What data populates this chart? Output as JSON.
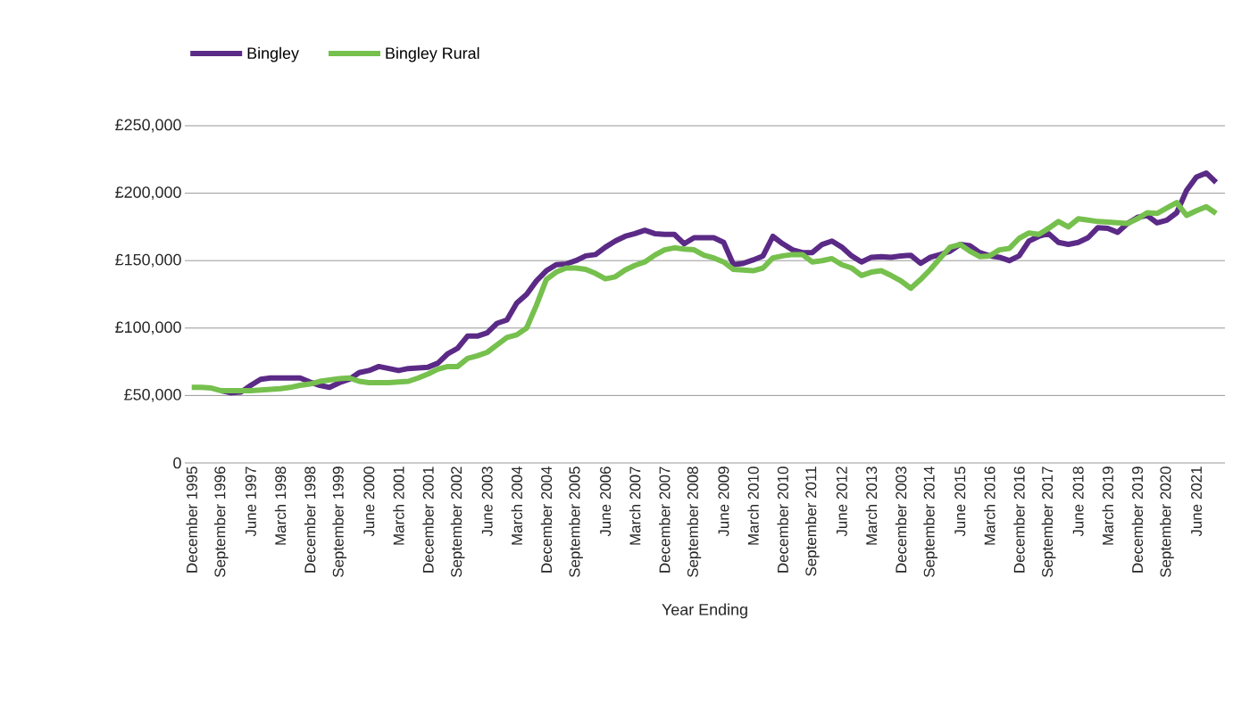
{
  "chart_data": {
    "type": "line",
    "xlabel": "Year Ending",
    "categories": [
      "December 1995",
      null,
      null,
      "September 1996",
      null,
      null,
      "June 1997",
      null,
      null,
      "March 1998",
      null,
      null,
      "December 1998",
      null,
      null,
      "September 1999",
      null,
      null,
      "June 2000",
      null,
      null,
      "March 2001",
      null,
      null,
      "December 2001",
      null,
      null,
      "September 2002",
      null,
      null,
      "June 2003",
      null,
      null,
      "March 2004",
      null,
      null,
      "December 2004",
      null,
      null,
      "September 2005",
      null,
      null,
      "June 2006",
      null,
      null,
      "March 2007",
      null,
      null,
      "December 2007",
      null,
      null,
      "September 2008",
      null,
      null,
      "June 2009",
      null,
      null,
      "March 2010",
      null,
      null,
      "December 2010",
      null,
      null,
      "September 2011",
      null,
      null,
      "June 2012",
      null,
      null,
      "March 2013",
      null,
      null,
      "December 2003",
      null,
      null,
      "September 2014",
      null,
      null,
      "June 2015",
      null,
      null,
      "March 2016",
      null,
      null,
      "December 2016",
      null,
      null,
      "September 2017",
      null,
      null,
      "June 2018",
      null,
      null,
      "March 2019",
      null,
      null,
      "December 2019",
      null,
      null,
      "September 2020",
      null,
      null,
      "June 2021",
      null,
      null
    ],
    "series": [
      {
        "name": "Bingley",
        "color": "#5b2a86",
        "values": [
          null,
          null,
          null,
          53500,
          52000,
          52500,
          57500,
          62000,
          63000,
          63000,
          63000,
          63000,
          60000,
          57500,
          56000,
          59500,
          62000,
          67000,
          68500,
          71500,
          70000,
          68500,
          70000,
          70500,
          71000,
          74000,
          81000,
          85000,
          94000,
          94000,
          96500,
          103500,
          106000,
          118500,
          125000,
          135000,
          142500,
          147000,
          147500,
          150000,
          153500,
          154500,
          160000,
          164500,
          168000,
          170000,
          172500,
          170000,
          169500,
          169500,
          162500,
          167000,
          167000,
          167000,
          163500,
          147000,
          148000,
          150500,
          153500,
          168000,
          162500,
          158000,
          156000,
          156000,
          162000,
          164500,
          160000,
          153500,
          149000,
          152500,
          153000,
          152500,
          153500,
          154000,
          148000,
          152500,
          154500,
          157000,
          162000,
          161000,
          156000,
          153500,
          152500,
          150000,
          153500,
          164500,
          168000,
          170000,
          163500,
          162000,
          163500,
          167000,
          174500,
          174000,
          171000,
          177500,
          182000,
          183500,
          178000,
          180000,
          185500,
          202000,
          212000,
          215000,
          208000
        ]
      },
      {
        "name": "Bingley Rural",
        "color": "#76c04e",
        "values": [
          56000,
          56000,
          55500,
          53500,
          53500,
          53500,
          53500,
          54000,
          54500,
          55000,
          56000,
          57500,
          58500,
          60500,
          61500,
          62500,
          63000,
          60500,
          59500,
          59500,
          59500,
          60000,
          60500,
          63000,
          66000,
          69500,
          71500,
          71500,
          77500,
          79500,
          82000,
          87500,
          93000,
          95000,
          100000,
          117000,
          136000,
          141500,
          144500,
          144500,
          143500,
          140500,
          136500,
          138000,
          143000,
          146500,
          149000,
          154000,
          158000,
          159500,
          158500,
          158000,
          154000,
          152000,
          149000,
          143500,
          143000,
          142500,
          144500,
          152000,
          153500,
          154500,
          154500,
          149000,
          150000,
          151500,
          147000,
          144500,
          139000,
          141500,
          142500,
          139000,
          135000,
          129500,
          136000,
          143500,
          152000,
          160000,
          162000,
          157000,
          153000,
          153500,
          158000,
          159000,
          166500,
          170500,
          169500,
          174000,
          179000,
          175000,
          181000,
          180000,
          179000,
          178500,
          178000,
          177500,
          181000,
          185500,
          185000,
          189000,
          193000,
          183500,
          187000,
          190000,
          185000
        ]
      }
    ],
    "ylim": [
      0,
      250000
    ],
    "yticks": [
      0,
      {
        "value": 50000,
        "label": "£50,000"
      },
      {
        "value": 100000,
        "label": "£100,000"
      },
      {
        "value": 150000,
        "label": "£150,000"
      },
      {
        "value": 200000,
        "label": "£200,000"
      },
      {
        "value": 250000,
        "label": "£250,000"
      }
    ],
    "grid": "y",
    "legend": "top left"
  }
}
